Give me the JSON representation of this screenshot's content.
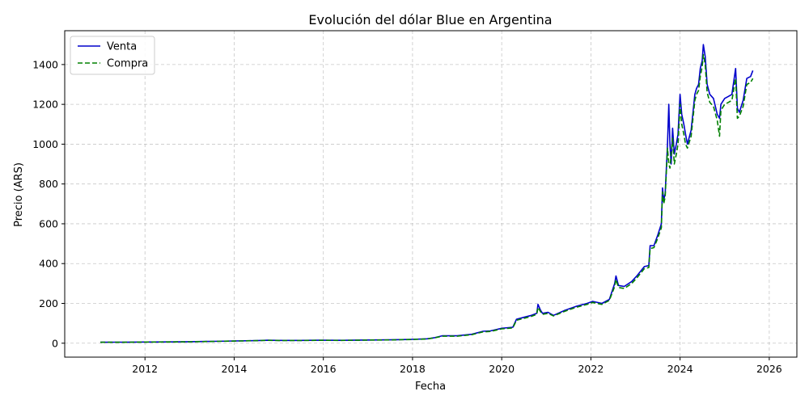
{
  "chart_data": {
    "type": "line",
    "title": "Evolución del dólar Blue en Argentina",
    "xlabel": "Fecha",
    "ylabel": "Precio (ARS)",
    "x_ticks": [
      "2012",
      "2014",
      "2016",
      "2018",
      "2020",
      "2022",
      "2024",
      "2026"
    ],
    "y_ticks": [
      "0",
      "200",
      "400",
      "600",
      "800",
      "1000",
      "1200",
      "1400"
    ],
    "xlim": [
      "2010-03-15",
      "2026-08-15"
    ],
    "ylim": [
      -70,
      1570
    ],
    "grid": true,
    "legend_position": "upper-left",
    "series": [
      {
        "name": "Venta",
        "color": "#0000cc",
        "style": "solid",
        "x": [
          "2011-01-01",
          "2011-07-01",
          "2012-01-01",
          "2012-07-01",
          "2013-01-01",
          "2013-07-01",
          "2014-01-01",
          "2014-07-01",
          "2014-10-01",
          "2015-01-01",
          "2015-07-01",
          "2015-12-01",
          "2016-06-01",
          "2017-01-01",
          "2017-07-01",
          "2018-01-01",
          "2018-05-01",
          "2018-07-01",
          "2018-09-01",
          "2019-01-01",
          "2019-05-01",
          "2019-08-01",
          "2019-10-01",
          "2020-01-01",
          "2020-04-01",
          "2020-05-01",
          "2020-07-01",
          "2020-09-01",
          "2020-10-15",
          "2020-10-25",
          "2020-11-15",
          "2020-12-01",
          "2021-01-15",
          "2021-03-01",
          "2021-06-01",
          "2021-09-01",
          "2021-12-01",
          "2022-01-15",
          "2022-04-01",
          "2022-06-01",
          "2022-07-15",
          "2022-07-25",
          "2022-08-15",
          "2022-10-01",
          "2022-12-01",
          "2023-01-15",
          "2023-03-15",
          "2023-04-20",
          "2023-05-01",
          "2023-06-01",
          "2023-07-01",
          "2023-08-01",
          "2023-08-10",
          "2023-08-20",
          "2023-09-01",
          "2023-09-20",
          "2023-10-01",
          "2023-10-10",
          "2023-10-20",
          "2023-11-01",
          "2023-11-15",
          "2023-12-01",
          "2023-12-15",
          "2024-01-01",
          "2024-01-15",
          "2024-02-01",
          "2024-02-15",
          "2024-03-01",
          "2024-04-01",
          "2024-05-01",
          "2024-05-15",
          "2024-06-01",
          "2024-06-15",
          "2024-07-01",
          "2024-07-10",
          "2024-07-25",
          "2024-08-10",
          "2024-09-01",
          "2024-10-01",
          "2024-11-01",
          "2024-11-20",
          "2024-12-01",
          "2025-01-01",
          "2025-02-01",
          "2025-03-01",
          "2025-04-01",
          "2025-04-15",
          "2025-05-01",
          "2025-06-01",
          "2025-07-01",
          "2025-08-01",
          "2025-08-20"
        ],
        "values": [
          5,
          5,
          6,
          6.5,
          7.5,
          9,
          11,
          13,
          15,
          14,
          14,
          15,
          14.5,
          16,
          17,
          19.5,
          22,
          28,
          37,
          37,
          45,
          60,
          62,
          75,
          80,
          120,
          130,
          140,
          150,
          195,
          165,
          150,
          155,
          140,
          165,
          185,
          200,
          210,
          200,
          220,
          300,
          338,
          290,
          285,
          310,
          340,
          385,
          390,
          490,
          490,
          540,
          600,
          780,
          720,
          750,
          1000,
          1200,
          1000,
          900,
          1080,
          950,
          1000,
          1050,
          1250,
          1150,
          1100,
          1050,
          1000,
          1070,
          1250,
          1280,
          1300,
          1380,
          1420,
          1500,
          1440,
          1300,
          1250,
          1230,
          1150,
          1130,
          1200,
          1230,
          1240,
          1250,
          1380,
          1180,
          1160,
          1220,
          1330,
          1340,
          1370
        ]
      },
      {
        "name": "Compra",
        "color": "#008000",
        "style": "dashed",
        "x": [
          "2011-01-01",
          "2011-07-01",
          "2012-01-01",
          "2012-07-01",
          "2013-01-01",
          "2013-07-01",
          "2014-01-01",
          "2014-07-01",
          "2014-10-01",
          "2015-01-01",
          "2015-07-01",
          "2015-12-01",
          "2016-06-01",
          "2017-01-01",
          "2017-07-01",
          "2018-01-01",
          "2018-05-01",
          "2018-07-01",
          "2018-09-01",
          "2019-01-01",
          "2019-05-01",
          "2019-08-01",
          "2019-10-01",
          "2020-01-01",
          "2020-04-01",
          "2020-05-01",
          "2020-07-01",
          "2020-09-01",
          "2020-10-15",
          "2020-10-25",
          "2020-11-15",
          "2020-12-01",
          "2021-01-15",
          "2021-03-01",
          "2021-06-01",
          "2021-09-01",
          "2021-12-01",
          "2022-01-15",
          "2022-04-01",
          "2022-06-01",
          "2022-07-15",
          "2022-07-25",
          "2022-08-15",
          "2022-10-01",
          "2022-12-01",
          "2023-01-15",
          "2023-03-15",
          "2023-04-20",
          "2023-05-01",
          "2023-06-01",
          "2023-07-01",
          "2023-08-01",
          "2023-08-10",
          "2023-08-20",
          "2023-09-01",
          "2023-09-20",
          "2023-10-01",
          "2023-10-10",
          "2023-10-20",
          "2023-11-01",
          "2023-11-15",
          "2023-12-01",
          "2023-12-15",
          "2024-01-01",
          "2024-01-15",
          "2024-02-01",
          "2024-02-15",
          "2024-03-01",
          "2024-04-01",
          "2024-05-01",
          "2024-05-15",
          "2024-06-01",
          "2024-06-15",
          "2024-07-01",
          "2024-07-10",
          "2024-07-25",
          "2024-08-10",
          "2024-09-01",
          "2024-10-01",
          "2024-11-01",
          "2024-11-20",
          "2024-12-01",
          "2025-01-01",
          "2025-02-01",
          "2025-03-01",
          "2025-04-01",
          "2025-04-15",
          "2025-05-01",
          "2025-06-01",
          "2025-07-01",
          "2025-08-01",
          "2025-08-20"
        ],
        "values": [
          4.8,
          4.8,
          5.8,
          6.3,
          7.2,
          8.7,
          10.7,
          12.7,
          14.6,
          13.6,
          13.6,
          14.6,
          14.2,
          15.6,
          16.6,
          19,
          21.5,
          27,
          35,
          35,
          43,
          57,
          59,
          72,
          77,
          115,
          125,
          135,
          145,
          180,
          158,
          145,
          150,
          137,
          160,
          180,
          195,
          205,
          195,
          215,
          285,
          320,
          280,
          275,
          300,
          330,
          375,
          380,
          475,
          480,
          525,
          580,
          760,
          700,
          735,
          980,
          900,
          880,
          950,
          1030,
          900,
          950,
          1000,
          1200,
          1100,
          1050,
          1000,
          980,
          1040,
          1220,
          1250,
          1270,
          1340,
          1390,
          1450,
          1400,
          1260,
          1210,
          1190,
          1120,
          1040,
          1170,
          1200,
          1210,
          1220,
          1330,
          1130,
          1140,
          1190,
          1300,
          1310,
          1330
        ]
      }
    ]
  }
}
